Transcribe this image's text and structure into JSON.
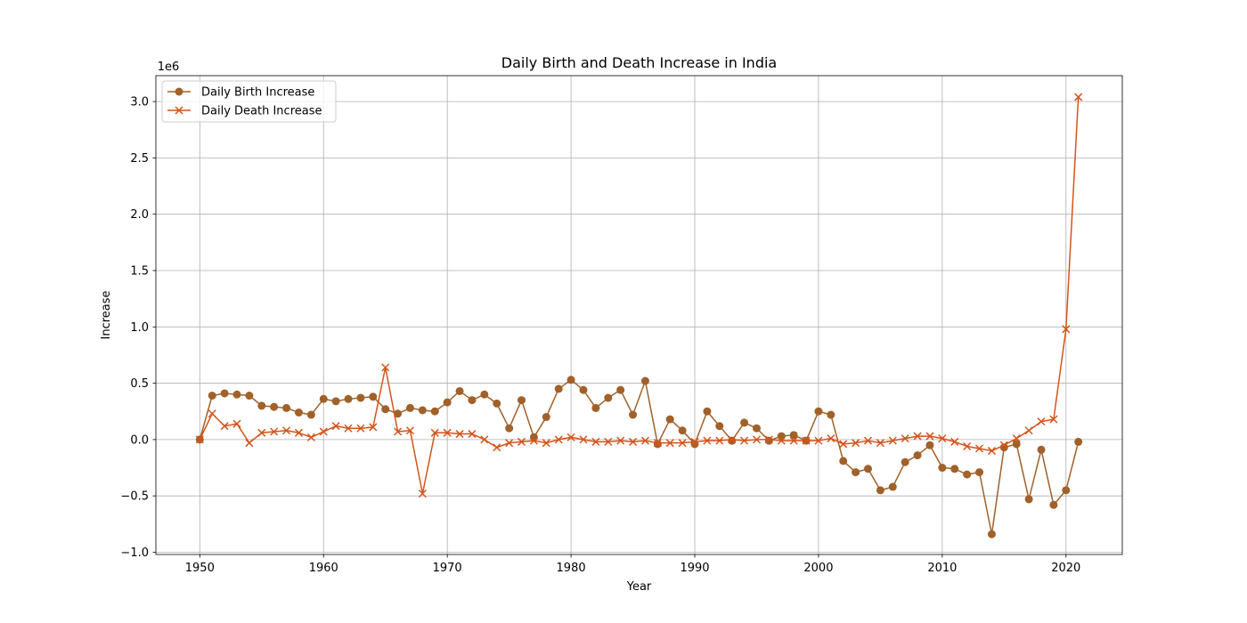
{
  "chart_data": {
    "type": "line",
    "title": "Daily Birth and Death Increase in India",
    "xlabel": "Year",
    "ylabel": "Increase",
    "y_offset_label": "1e6",
    "xlim": [
      1946.45,
      2024.55
    ],
    "ylim": [
      -1.02,
      3.23
    ],
    "x_ticks": [
      1950,
      1960,
      1970,
      1980,
      1990,
      2000,
      2010,
      2020
    ],
    "y_ticks": [
      -1.0,
      -0.5,
      0.0,
      0.5,
      1.0,
      1.5,
      2.0,
      2.5,
      3.0
    ],
    "y_tick_labels": [
      "−1.0",
      "−0.5",
      "0.0",
      "0.5",
      "1.0",
      "1.5",
      "2.0",
      "2.5",
      "3.0"
    ],
    "grid": true,
    "legend_position": "top-left",
    "x": [
      1950,
      1951,
      1952,
      1953,
      1954,
      1955,
      1956,
      1957,
      1958,
      1959,
      1960,
      1961,
      1962,
      1963,
      1964,
      1965,
      1966,
      1967,
      1968,
      1969,
      1970,
      1971,
      1972,
      1973,
      1974,
      1975,
      1976,
      1977,
      1978,
      1979,
      1980,
      1981,
      1982,
      1983,
      1984,
      1985,
      1986,
      1987,
      1988,
      1989,
      1990,
      1991,
      1992,
      1993,
      1994,
      1995,
      1996,
      1997,
      1998,
      1999,
      2000,
      2001,
      2002,
      2003,
      2004,
      2005,
      2006,
      2007,
      2008,
      2009,
      2010,
      2011,
      2012,
      2013,
      2014,
      2015,
      2016,
      2017,
      2018,
      2019,
      2020,
      2021
    ],
    "series": [
      {
        "name": "Daily Birth Increase",
        "color": "#a0612a",
        "marker": "circle",
        "values": [
          0.0,
          0.39,
          0.41,
          0.4,
          0.39,
          0.3,
          0.29,
          0.28,
          0.24,
          0.22,
          0.36,
          0.34,
          0.36,
          0.37,
          0.38,
          0.27,
          0.23,
          0.28,
          0.26,
          0.25,
          0.33,
          0.43,
          0.35,
          0.4,
          0.32,
          0.1,
          0.35,
          0.02,
          0.2,
          0.45,
          0.53,
          0.44,
          0.28,
          0.37,
          0.44,
          0.22,
          0.52,
          -0.04,
          0.18,
          0.08,
          -0.04,
          0.25,
          0.12,
          -0.01,
          0.15,
          0.1,
          -0.01,
          0.03,
          0.04,
          -0.01,
          0.25,
          0.22,
          -0.19,
          -0.29,
          -0.26,
          -0.45,
          -0.42,
          -0.2,
          -0.14,
          -0.05,
          -0.25,
          -0.26,
          -0.31,
          -0.29,
          -0.84,
          -0.07,
          -0.04,
          -0.53,
          -0.09,
          -0.58,
          -0.45,
          -0.02
        ]
      },
      {
        "name": "Daily Death Increase",
        "color": "#d4541a",
        "marker": "x",
        "values": [
          0.0,
          0.23,
          0.12,
          0.14,
          -0.03,
          0.06,
          0.07,
          0.08,
          0.06,
          0.02,
          0.07,
          0.12,
          0.1,
          0.1,
          0.11,
          0.64,
          0.07,
          0.08,
          -0.48,
          0.06,
          0.06,
          0.05,
          0.05,
          0.0,
          -0.07,
          -0.03,
          -0.02,
          -0.01,
          -0.03,
          0.0,
          0.02,
          0.0,
          -0.02,
          -0.02,
          -0.01,
          -0.02,
          -0.01,
          -0.03,
          -0.03,
          -0.03,
          -0.02,
          -0.01,
          -0.01,
          0.0,
          -0.01,
          0.0,
          0.0,
          -0.01,
          -0.01,
          -0.01,
          -0.01,
          0.01,
          -0.04,
          -0.03,
          -0.01,
          -0.03,
          -0.01,
          0.01,
          0.03,
          0.03,
          0.01,
          -0.02,
          -0.06,
          -0.08,
          -0.1,
          -0.05,
          0.01,
          0.08,
          0.16,
          0.18,
          0.98,
          3.04
        ]
      }
    ]
  }
}
